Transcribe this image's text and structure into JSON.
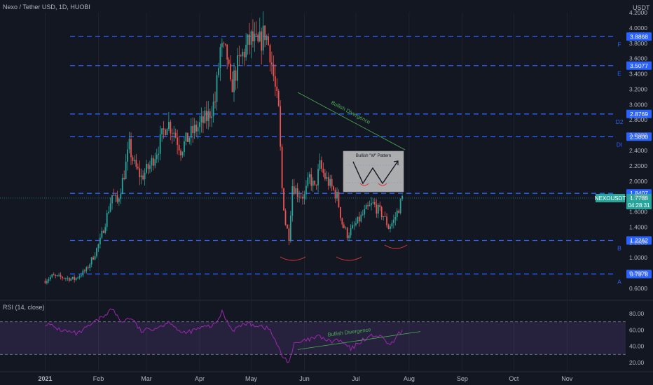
{
  "header": {
    "title": "Nexo / Tether USD, 1D, HUOBI",
    "currency": "USDT"
  },
  "rsi": {
    "label": "RSI (14, close)",
    "ticks": [
      "80.00",
      "60.00",
      "40.00",
      "20.00"
    ]
  },
  "colors": {
    "background": "#131722",
    "bull": "#26a69a",
    "bear": "#ef5350",
    "level_line": "#2962ff",
    "rsi_line": "#9c27b0",
    "rsi_band": "#7e57c2",
    "axis_text": "#b2b5be",
    "divergence": "#4caf50",
    "arc": "#e53935",
    "pattern_box": "#c8c8c8"
  },
  "chart_data": {
    "type": "candlestick",
    "title": "Nexo / Tether USD, 1D, HUOBI",
    "y_ticks": [
      "4.2000",
      "4.0000",
      "3.8000",
      "3.6000",
      "3.4000",
      "3.2000",
      "3.0000",
      "2.8000",
      "2.6000",
      "2.4000",
      "2.2000",
      "2.0000",
      "1.8000",
      "1.6000",
      "1.4000",
      "1.2000",
      "1.0000",
      "0.8000",
      "0.6000"
    ],
    "x_ticks": [
      "2021",
      "Feb",
      "Mar",
      "Apr",
      "May",
      "Jun",
      "Jul",
      "Aug",
      "Sep",
      "Oct",
      "Nov"
    ],
    "levels": [
      {
        "label": "F",
        "value": "3.8868"
      },
      {
        "label": "E",
        "value": "3.5077"
      },
      {
        "label": "D2",
        "value": "2.8769"
      },
      {
        "label": "DI",
        "value": "2.5800"
      },
      {
        "label": "",
        "value": "1.8407"
      },
      {
        "label": "B",
        "value": "1.2262"
      },
      {
        "label": "A",
        "value": "0.7878"
      }
    ],
    "current_price": {
      "symbol": "NEXOUSDT",
      "price": "1.7788",
      "countdown": "04:28:31"
    },
    "pattern_label": "Bullish \"W\" Pattern",
    "annotations": [
      "Bullish Divergence",
      "Bullish Divergence"
    ],
    "anchors": [
      [
        "2021-01-01",
        0.7
      ],
      [
        "2021-01-05",
        0.76
      ],
      [
        "2021-01-12",
        0.74
      ],
      [
        "2021-01-18",
        0.72
      ],
      [
        "2021-01-25",
        0.84
      ],
      [
        "2021-01-30",
        1.06
      ],
      [
        "2021-02-02",
        1.22
      ],
      [
        "2021-02-06",
        1.55
      ],
      [
        "2021-02-09",
        1.82
      ],
      [
        "2021-02-12",
        1.72
      ],
      [
        "2021-02-16",
        2.1
      ],
      [
        "2021-02-19",
        2.45
      ],
      [
        "2021-02-22",
        2.2
      ],
      [
        "2021-02-26",
        2.05
      ],
      [
        "2021-03-03",
        2.2
      ],
      [
        "2021-03-08",
        2.45
      ],
      [
        "2021-03-13",
        2.78
      ],
      [
        "2021-03-17",
        2.65
      ],
      [
        "2021-03-21",
        2.42
      ],
      [
        "2021-03-27",
        2.62
      ],
      [
        "2021-04-02",
        2.75
      ],
      [
        "2021-04-06",
        2.85
      ],
      [
        "2021-04-10",
        3.05
      ],
      [
        "2021-04-13",
        3.72
      ],
      [
        "2021-04-17",
        3.62
      ],
      [
        "2021-04-19",
        3.2
      ],
      [
        "2021-04-23",
        3.5
      ],
      [
        "2021-04-27",
        3.7
      ],
      [
        "2021-05-01",
        3.85
      ],
      [
        "2021-05-05",
        3.75
      ],
      [
        "2021-05-09",
        3.95
      ],
      [
        "2021-05-12",
        3.7
      ],
      [
        "2021-05-15",
        3.2
      ],
      [
        "2021-05-17",
        2.9
      ],
      [
        "2021-05-19",
        1.9
      ],
      [
        "2021-05-21",
        1.45
      ],
      [
        "2021-05-23",
        1.28
      ],
      [
        "2021-05-25",
        1.95
      ],
      [
        "2021-05-28",
        1.85
      ],
      [
        "2021-06-01",
        1.8
      ],
      [
        "2021-06-04",
        2.05
      ],
      [
        "2021-06-07",
        1.9
      ],
      [
        "2021-06-10",
        2.2
      ],
      [
        "2021-06-13",
        2.05
      ],
      [
        "2021-06-16",
        1.95
      ],
      [
        "2021-06-20",
        1.8
      ],
      [
        "2021-06-23",
        1.45
      ],
      [
        "2021-06-26",
        1.3
      ],
      [
        "2021-06-29",
        1.38
      ],
      [
        "2021-07-03",
        1.5
      ],
      [
        "2021-07-07",
        1.62
      ],
      [
        "2021-07-11",
        1.7
      ],
      [
        "2021-07-14",
        1.62
      ],
      [
        "2021-07-17",
        1.55
      ],
      [
        "2021-07-20",
        1.4
      ],
      [
        "2021-07-23",
        1.48
      ],
      [
        "2021-07-26",
        1.65
      ],
      [
        "2021-07-28",
        1.78
      ]
    ],
    "rsi_anchors": [
      [
        "2021-01-01",
        68
      ],
      [
        "2021-01-10",
        60
      ],
      [
        "2021-01-20",
        55
      ],
      [
        "2021-02-02",
        74
      ],
      [
        "2021-02-09",
        86
      ],
      [
        "2021-02-14",
        70
      ],
      [
        "2021-02-20",
        75
      ],
      [
        "2021-02-26",
        58
      ],
      [
        "2021-03-08",
        64
      ],
      [
        "2021-03-15",
        70
      ],
      [
        "2021-03-22",
        55
      ],
      [
        "2021-04-01",
        62
      ],
      [
        "2021-04-10",
        66
      ],
      [
        "2021-04-14",
        82
      ],
      [
        "2021-04-20",
        60
      ],
      [
        "2021-04-28",
        68
      ],
      [
        "2021-05-07",
        65
      ],
      [
        "2021-05-12",
        60
      ],
      [
        "2021-05-16",
        42
      ],
      [
        "2021-05-19",
        28
      ],
      [
        "2021-05-23",
        21
      ],
      [
        "2021-05-26",
        42
      ],
      [
        "2021-06-02",
        47
      ],
      [
        "2021-06-10",
        52
      ],
      [
        "2021-06-16",
        45
      ],
      [
        "2021-06-20",
        48
      ],
      [
        "2021-06-25",
        42
      ],
      [
        "2021-06-28",
        36
      ],
      [
        "2021-07-05",
        48
      ],
      [
        "2021-07-12",
        54
      ],
      [
        "2021-07-18",
        48
      ],
      [
        "2021-07-21",
        40
      ],
      [
        "2021-07-25",
        52
      ],
      [
        "2021-07-28",
        60
      ]
    ]
  }
}
